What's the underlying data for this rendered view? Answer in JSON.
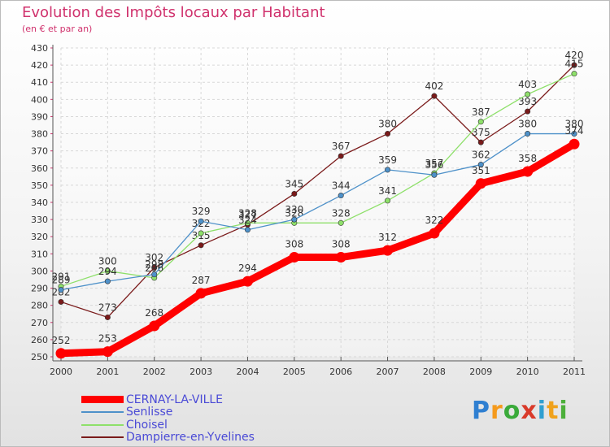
{
  "title": "Evolution des Impôts locaux par Habitant",
  "subtitle": "(en € et par an)",
  "logo": {
    "text": "Proxiti",
    "letters": [
      "P",
      "r",
      "o",
      "x",
      "i",
      "t",
      "i"
    ]
  },
  "chart_data": {
    "type": "line",
    "title": "Evolution des Impôts locaux par Habitant",
    "subtitle": "(en € et par an)",
    "xlabel": "",
    "ylabel": "",
    "x": [
      "2000",
      "2001",
      "2002",
      "2003",
      "2004",
      "2005",
      "2006",
      "2007",
      "2008",
      "2009",
      "2010",
      "2011"
    ],
    "ylim": [
      250,
      430
    ],
    "ystep": 10,
    "grid": true,
    "legend_position": "bottom-left",
    "series": [
      {
        "name": "Dampierre-en-Yvelines",
        "color": "#7a1a1a",
        "values": [
          282,
          273,
          302,
          315,
          327,
          345,
          367,
          380,
          402,
          375,
          393,
          420
        ]
      },
      {
        "name": "Choisel",
        "color": "#8ee06a",
        "values": [
          291,
          300,
          296,
          322,
          328,
          328,
          328,
          341,
          357,
          387,
          403,
          415
        ]
      },
      {
        "name": "Senlisse",
        "color": "#4e91c9",
        "values": [
          289,
          294,
          298,
          329,
          324,
          330,
          344,
          359,
          356,
          362,
          380,
          380
        ]
      },
      {
        "name": "CERNAY-LA-VILLE",
        "color": "#ff0000",
        "values": [
          252,
          253,
          268,
          287,
          294,
          308,
          308,
          312,
          322,
          351,
          358,
          374
        ]
      }
    ],
    "legend": [
      {
        "name": "CERNAY-LA-VILLE",
        "color": "#ff0000"
      },
      {
        "name": "Senlisse",
        "color": "#4e91c9"
      },
      {
        "name": "Choisel",
        "color": "#8ee06a"
      },
      {
        "name": "Dampierre-en-Yvelines",
        "color": "#7a1a1a"
      }
    ]
  }
}
